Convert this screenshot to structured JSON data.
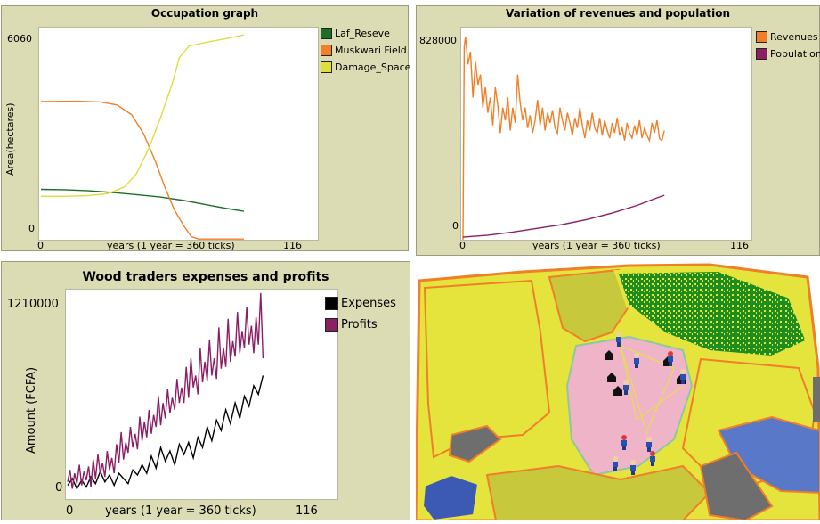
{
  "chart_data": [
    {
      "type": "line",
      "title": "Occupation graph",
      "xlabel": "years (1 year = 360 ticks)",
      "ylabel": "Area(hectares)",
      "x_ticks": [
        "0",
        "116"
      ],
      "y_ticks": [
        "0",
        "6060"
      ],
      "xlim": [
        0,
        116
      ],
      "ylim": [
        0,
        6060
      ],
      "legend_position": "right",
      "series": [
        {
          "name": "Laf_Reseve",
          "color": "#1e6e28",
          "points": [
            [
              0,
              1450
            ],
            [
              10,
              1440
            ],
            [
              20,
              1410
            ],
            [
              30,
              1360
            ],
            [
              40,
              1300
            ],
            [
              50,
              1230
            ],
            [
              60,
              1130
            ],
            [
              70,
              1000
            ],
            [
              78,
              900
            ],
            [
              85,
              820
            ]
          ]
        },
        {
          "name": "Muskwari Field",
          "color": "#f07f28",
          "points": [
            [
              0,
              3980
            ],
            [
              15,
              3990
            ],
            [
              25,
              3970
            ],
            [
              32,
              3880
            ],
            [
              38,
              3600
            ],
            [
              43,
              3050
            ],
            [
              48,
              2250
            ],
            [
              52,
              1500
            ],
            [
              56,
              850
            ],
            [
              60,
              380
            ],
            [
              63,
              90
            ],
            [
              66,
              20
            ],
            [
              75,
              20
            ],
            [
              85,
              20
            ]
          ]
        },
        {
          "name": "Damage_Space",
          "color": "#dede3c",
          "points": [
            [
              0,
              1250
            ],
            [
              10,
              1250
            ],
            [
              20,
              1270
            ],
            [
              28,
              1330
            ],
            [
              35,
              1520
            ],
            [
              40,
              1900
            ],
            [
              45,
              2600
            ],
            [
              50,
              3500
            ],
            [
              55,
              4500
            ],
            [
              58,
              5250
            ],
            [
              62,
              5580
            ],
            [
              70,
              5700
            ],
            [
              78,
              5800
            ],
            [
              85,
              5900
            ]
          ]
        }
      ]
    },
    {
      "type": "line",
      "title": "Variation of revenues and population",
      "xlabel": "years (1 year = 360 ticks)",
      "ylabel": "",
      "x_ticks": [
        "0",
        "116"
      ],
      "y_ticks": [
        "0",
        "828000"
      ],
      "xlim": [
        0,
        116
      ],
      "ylim": [
        0,
        828000
      ],
      "legend_position": "right",
      "series": [
        {
          "name": "Revenues",
          "color": "#f07f28",
          "points": [
            [
              0,
              0
            ],
            [
              0.5,
              760000
            ],
            [
              1,
              800000
            ],
            [
              2,
              690000
            ],
            [
              3,
              740000
            ],
            [
              4,
              560000
            ],
            [
              5,
              700000
            ],
            [
              6,
              610000
            ],
            [
              7,
              650000
            ],
            [
              8,
              520000
            ],
            [
              9,
              600000
            ],
            [
              10,
              500000
            ],
            [
              11,
              560000
            ],
            [
              12,
              450000
            ],
            [
              13,
              600000
            ],
            [
              14,
              530000
            ],
            [
              15,
              420000
            ],
            [
              16,
              520000
            ],
            [
              17,
              470000
            ],
            [
              18,
              560000
            ],
            [
              19,
              430000
            ],
            [
              20,
              520000
            ],
            [
              21,
              460000
            ],
            [
              22,
              650000
            ],
            [
              23,
              540000
            ],
            [
              24,
              470000
            ],
            [
              25,
              520000
            ],
            [
              26,
              440000
            ],
            [
              27,
              490000
            ],
            [
              28,
              420000
            ],
            [
              29,
              470000
            ],
            [
              30,
              550000
            ],
            [
              31,
              450000
            ],
            [
              32,
              520000
            ],
            [
              33,
              430000
            ],
            [
              34,
              500000
            ],
            [
              35,
              460000
            ],
            [
              36,
              510000
            ],
            [
              37,
              440000
            ],
            [
              38,
              420000
            ],
            [
              39,
              520000
            ],
            [
              40,
              470000
            ],
            [
              41,
              430000
            ],
            [
              42,
              500000
            ],
            [
              43,
              460000
            ],
            [
              44,
              410000
            ],
            [
              45,
              480000
            ],
            [
              46,
              440000
            ],
            [
              47,
              520000
            ],
            [
              48,
              450000
            ],
            [
              49,
              400000
            ],
            [
              50,
              470000
            ],
            [
              51,
              430000
            ],
            [
              52,
              500000
            ],
            [
              53,
              440000
            ],
            [
              54,
              420000
            ],
            [
              55,
              480000
            ],
            [
              56,
              410000
            ],
            [
              57,
              470000
            ],
            [
              58,
              430000
            ],
            [
              59,
              400000
            ],
            [
              60,
              460000
            ],
            [
              61,
              420000
            ],
            [
              62,
              480000
            ],
            [
              63,
              410000
            ],
            [
              64,
              440000
            ],
            [
              65,
              390000
            ],
            [
              66,
              460000
            ],
            [
              67,
              420000
            ],
            [
              68,
              400000
            ],
            [
              69,
              450000
            ],
            [
              70,
              410000
            ],
            [
              71,
              470000
            ],
            [
              72,
              400000
            ],
            [
              73,
              440000
            ],
            [
              74,
              410000
            ],
            [
              75,
              390000
            ],
            [
              76,
              460000
            ],
            [
              77,
              420000
            ],
            [
              78,
              470000
            ],
            [
              79,
              400000
            ],
            [
              80,
              390000
            ],
            [
              81,
              430000
            ]
          ]
        },
        {
          "name": "Population",
          "color": "#8c1e64",
          "points": [
            [
              0,
              10000
            ],
            [
              10,
              18000
            ],
            [
              20,
              30000
            ],
            [
              30,
              45000
            ],
            [
              40,
              60000
            ],
            [
              50,
              80000
            ],
            [
              60,
              105000
            ],
            [
              70,
              135000
            ],
            [
              78,
              165000
            ],
            [
              81,
              175000
            ]
          ]
        }
      ]
    },
    {
      "type": "line",
      "title": "Wood traders expenses and profits",
      "xlabel": "years (1 year = 360 ticks)",
      "ylabel": "Amount (FCFA)",
      "x_ticks": [
        "0",
        "116"
      ],
      "y_ticks": [
        "0",
        "1210000"
      ],
      "xlim": [
        0,
        116
      ],
      "ylim": [
        0,
        1210000
      ],
      "legend_position": "right",
      "series": [
        {
          "name": "Expenses",
          "color": "#000000",
          "points": [
            [
              0,
              80000
            ],
            [
              2,
              120000
            ],
            [
              4,
              60000
            ],
            [
              6,
              110000
            ],
            [
              8,
              70000
            ],
            [
              10,
              130000
            ],
            [
              12,
              90000
            ],
            [
              14,
              160000
            ],
            [
              16,
              100000
            ],
            [
              18,
              140000
            ],
            [
              20,
              80000
            ],
            [
              22,
              150000
            ],
            [
              24,
              120000
            ],
            [
              26,
              90000
            ],
            [
              28,
              170000
            ],
            [
              30,
              140000
            ],
            [
              32,
              200000
            ],
            [
              34,
              150000
            ],
            [
              36,
              250000
            ],
            [
              38,
              180000
            ],
            [
              40,
              300000
            ],
            [
              42,
              220000
            ],
            [
              44,
              280000
            ],
            [
              46,
              200000
            ],
            [
              48,
              320000
            ],
            [
              50,
              260000
            ],
            [
              52,
              330000
            ],
            [
              54,
              240000
            ],
            [
              56,
              360000
            ],
            [
              58,
              300000
            ],
            [
              60,
              420000
            ],
            [
              62,
              340000
            ],
            [
              64,
              460000
            ],
            [
              66,
              400000
            ],
            [
              68,
              520000
            ],
            [
              70,
              440000
            ],
            [
              72,
              560000
            ],
            [
              74,
              470000
            ],
            [
              76,
              600000
            ],
            [
              78,
              540000
            ],
            [
              80,
              660000
            ],
            [
              82,
              610000
            ],
            [
              84,
              720000
            ]
          ]
        },
        {
          "name": "Profits",
          "color": "#8c1e64",
          "points": [
            [
              0,
              100000
            ],
            [
              1,
              170000
            ],
            [
              2,
              60000
            ],
            [
              3,
              150000
            ],
            [
              4,
              90000
            ],
            [
              5,
              200000
            ],
            [
              6,
              80000
            ],
            [
              7,
              160000
            ],
            [
              8,
              110000
            ],
            [
              9,
              190000
            ],
            [
              10,
              70000
            ],
            [
              11,
              230000
            ],
            [
              12,
              120000
            ],
            [
              13,
              260000
            ],
            [
              14,
              150000
            ],
            [
              15,
              210000
            ],
            [
              16,
              130000
            ],
            [
              17,
              280000
            ],
            [
              18,
              170000
            ],
            [
              19,
              240000
            ],
            [
              20,
              150000
            ],
            [
              21,
              320000
            ],
            [
              22,
              210000
            ],
            [
              23,
              390000
            ],
            [
              24,
              230000
            ],
            [
              25,
              330000
            ],
            [
              26,
              270000
            ],
            [
              27,
              420000
            ],
            [
              28,
              300000
            ],
            [
              29,
              380000
            ],
            [
              30,
              290000
            ],
            [
              31,
              480000
            ],
            [
              32,
              340000
            ],
            [
              33,
              450000
            ],
            [
              34,
              360000
            ],
            [
              35,
              520000
            ],
            [
              36,
              380000
            ],
            [
              37,
              490000
            ],
            [
              38,
              420000
            ],
            [
              39,
              600000
            ],
            [
              40,
              430000
            ],
            [
              41,
              560000
            ],
            [
              42,
              470000
            ],
            [
              43,
              640000
            ],
            [
              44,
              500000
            ],
            [
              45,
              590000
            ],
            [
              46,
              520000
            ],
            [
              47,
              700000
            ],
            [
              48,
              560000
            ],
            [
              49,
              650000
            ],
            [
              50,
              560000
            ],
            [
              51,
              770000
            ],
            [
              52,
              590000
            ],
            [
              53,
              820000
            ],
            [
              54,
              650000
            ],
            [
              55,
              720000
            ],
            [
              56,
              610000
            ],
            [
              57,
              880000
            ],
            [
              58,
              680000
            ],
            [
              59,
              800000
            ],
            [
              60,
              690000
            ],
            [
              61,
              930000
            ],
            [
              62,
              720000
            ],
            [
              63,
              820000
            ],
            [
              64,
              700000
            ],
            [
              65,
              1000000
            ],
            [
              66,
              760000
            ],
            [
              67,
              880000
            ],
            [
              68,
              770000
            ],
            [
              69,
              1050000
            ],
            [
              70,
              800000
            ],
            [
              71,
              920000
            ],
            [
              72,
              830000
            ],
            [
              73,
              1090000
            ],
            [
              74,
              850000
            ],
            [
              75,
              980000
            ],
            [
              76,
              880000
            ],
            [
              77,
              1120000
            ],
            [
              78,
              900000
            ],
            [
              79,
              1010000
            ],
            [
              80,
              850000
            ],
            [
              81,
              1060000
            ],
            [
              82,
              900000
            ],
            [
              83,
              1200000
            ],
            [
              84,
              820000
            ]
          ]
        }
      ]
    }
  ],
  "world_map": {
    "description_colors": {
      "reserve": "#2aa02a",
      "damaged_land": "#e4e43c",
      "field_edge": "#f07f28",
      "pasture": "#c8c83c",
      "village": "#f0b4c8",
      "water": "#5a78c8",
      "rock": "#6e6e6e"
    }
  }
}
